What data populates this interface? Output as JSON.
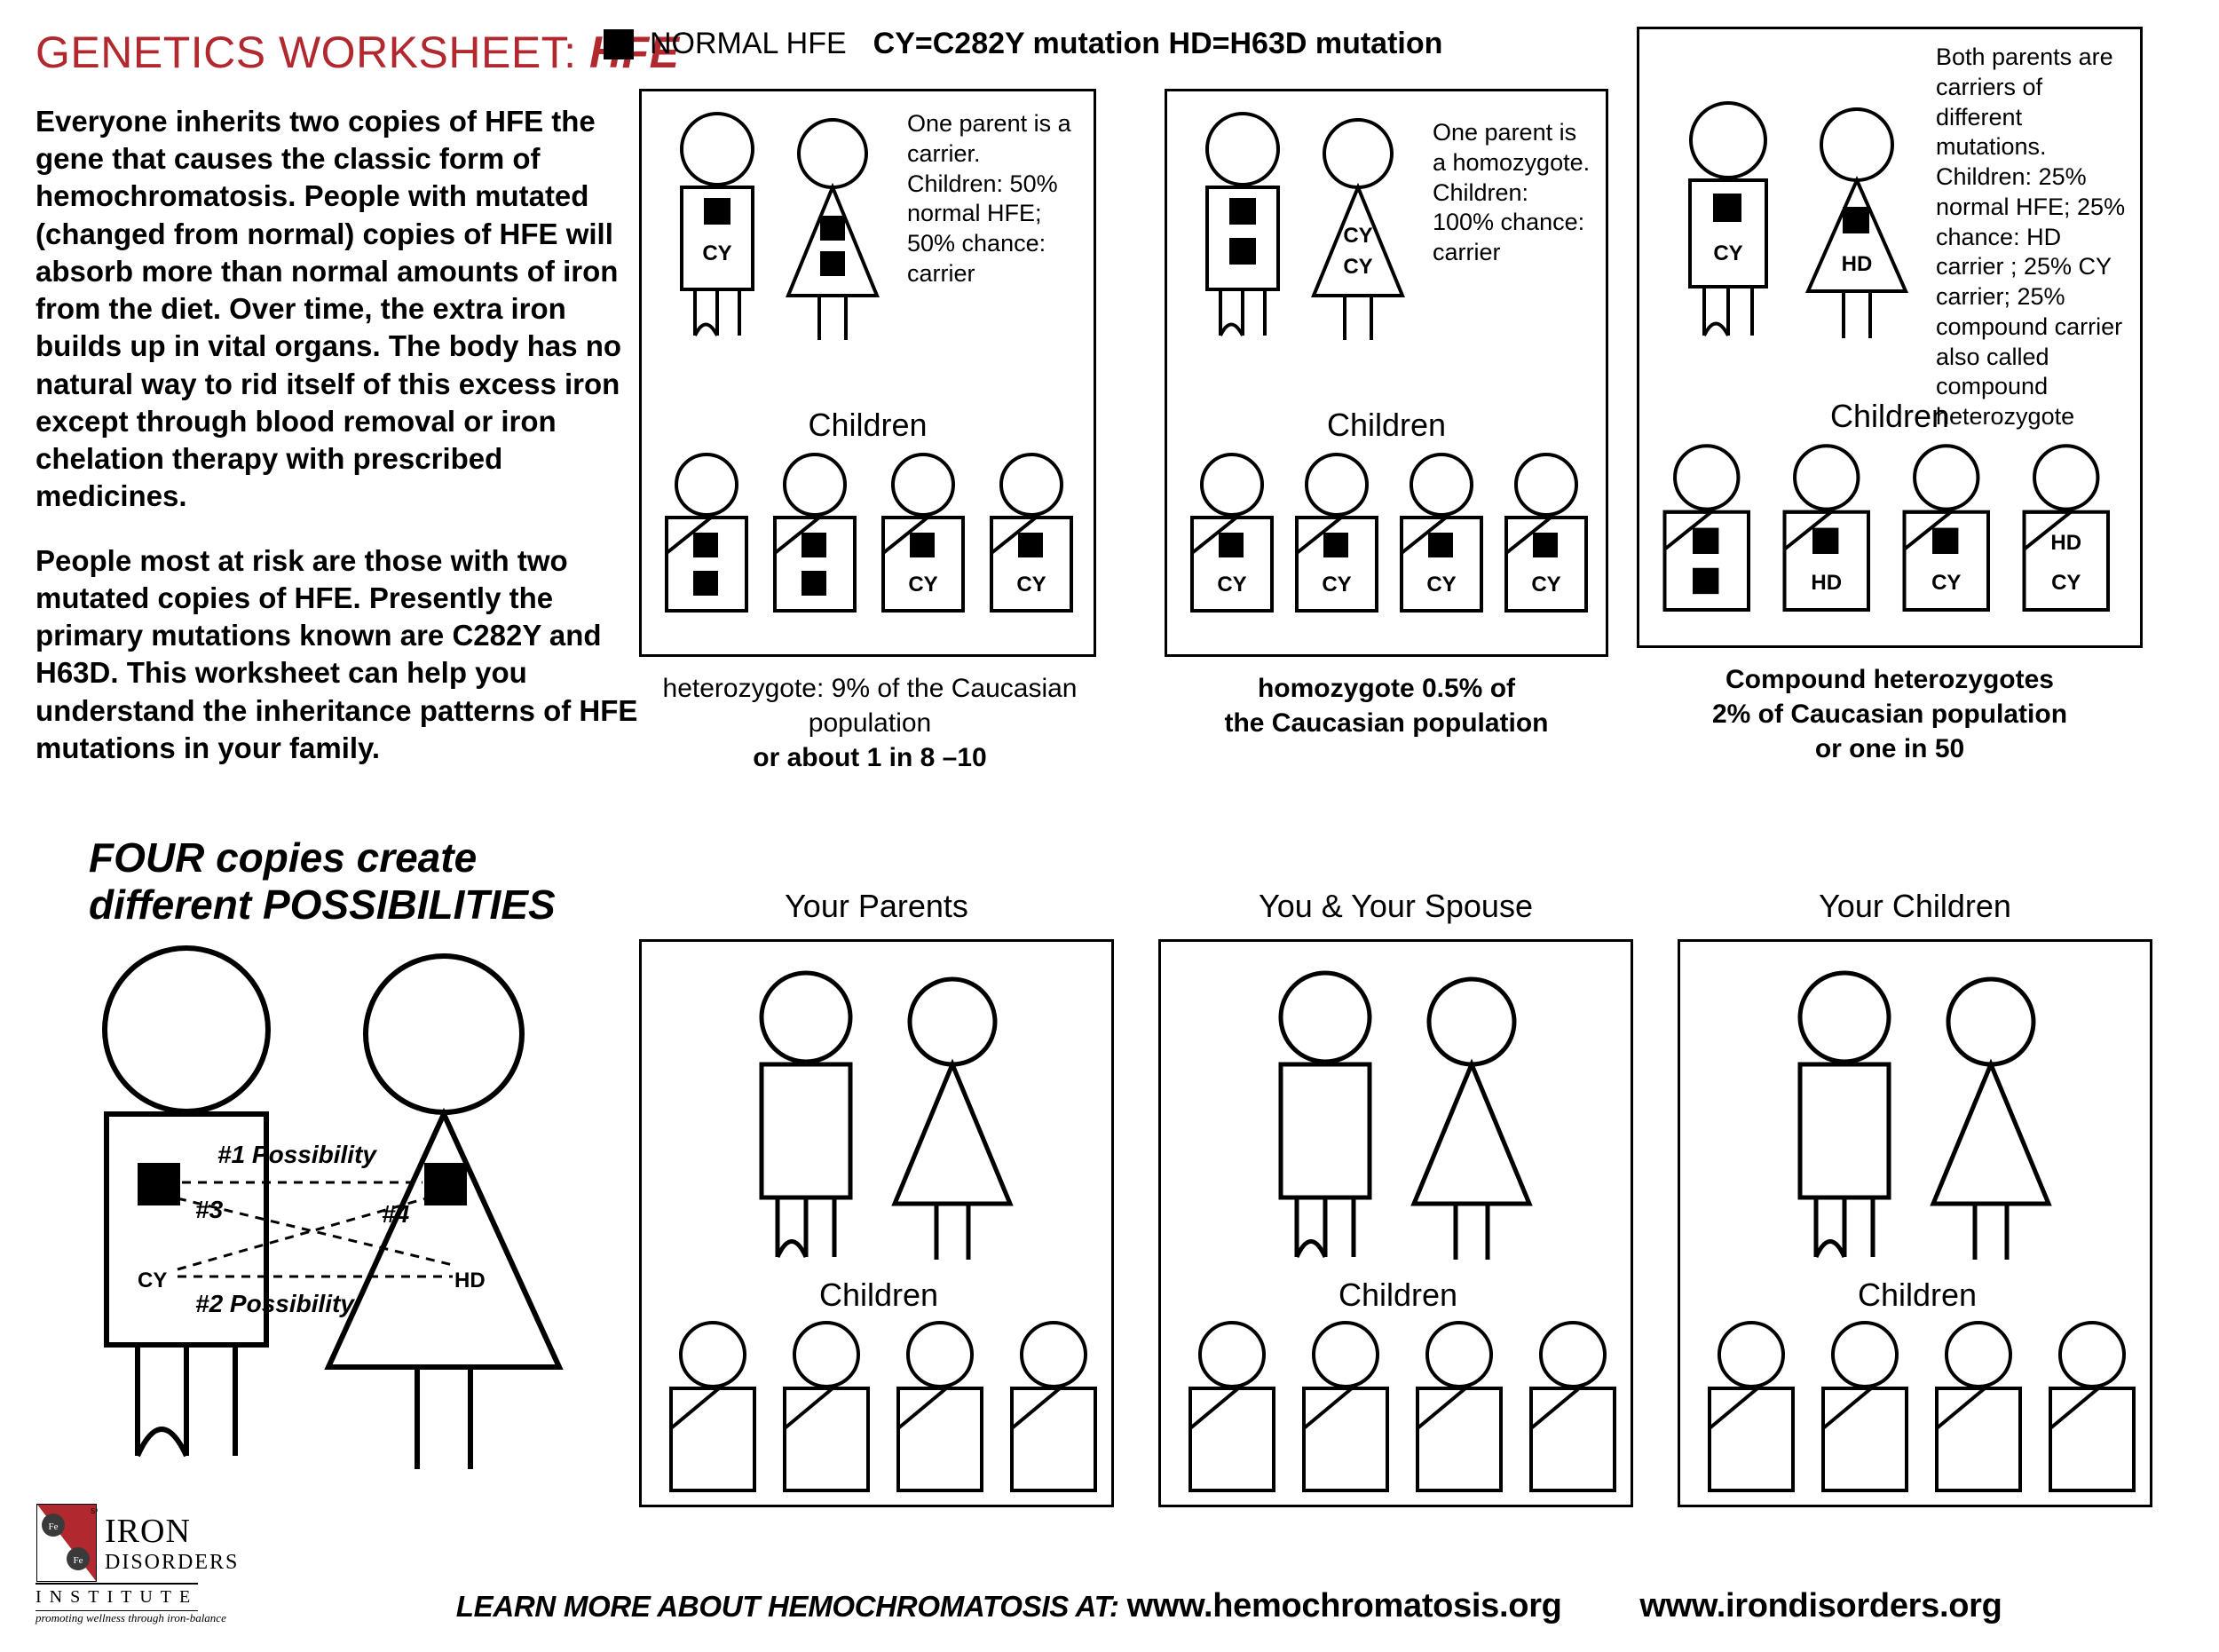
{
  "title_prefix": "GENETICS WORKSHEET: ",
  "title_em": "HFE",
  "legend_normal": "NORMAL HFE",
  "legend_mutations": "CY=C282Y mutation HD=H63D mutation",
  "intro_p1": "Everyone inherits two copies of HFE the gene that causes the classic form of hemochromatosis. People with mutated (changed from normal) copies of HFE will absorb more than normal amounts of iron from the diet.  Over time, the extra iron builds up in vital organs. The body has no natural way to rid itself of this excess iron except through blood removal or iron chelation therapy with prescribed medicines.",
  "intro_p2": "People most at risk are those with two mutated copies of HFE. Presently the primary mutations known are C282Y and H63D. This worksheet can help you understand the inheritance patterns of HFE mutations in your family.",
  "panel1_desc": "One parent is a carrier. Children: 50% normal HFE; 50% chance: carrier",
  "panel2_desc": "One parent is a homozygote. Children: 100% chance: carrier",
  "panel3_desc": "Both parents are carriers of different mutations. Children: 25% normal HFE; 25% chance: HD carrier ; 25% CY carrier; 25% compound carrier also called compound heterozygote",
  "children_label": "Children",
  "panel1_cap1": "heterozygote: 9% of the Caucasian population",
  "panel1_cap2": "or about 1 in 8 –10",
  "panel2_cap1": "homozygote 0.5% of",
  "panel2_cap2": "the Caucasian population",
  "panel3_cap1": "Compound heterozygotes",
  "panel3_cap2": "2% of Caucasian population",
  "panel3_cap3": "or one in 50",
  "bottom_title_l1": "FOUR copies create",
  "bottom_title_l2": "different POSSIBILITIES",
  "col1_title": "Your Parents",
  "col2_title": "You & Your Spouse",
  "col3_title": "Your Children",
  "poss1": "#1 Possibility",
  "poss2": "#2 Possibility",
  "poss3": "#3",
  "poss4": "#4",
  "gene_cy": "CY",
  "gene_hd": "HD",
  "footer_learn": "LEARN MORE ABOUT HEMOCHROMATOSIS AT: ",
  "footer_url1": "www.hemochromatosis.org",
  "footer_url2": "www.irondisorders.org",
  "logo_l1": "IRON",
  "logo_l2": "DISORDERS",
  "logo_l3": "INSTITUTE",
  "logo_tag": "promoting wellness through iron-balance",
  "colors": {
    "title": "#b1282e",
    "body": "#000000",
    "bg": "#ffffff",
    "logo_red": "#b1282e",
    "logo_dark": "#3a3a3a"
  },
  "panel1_father": {
    "gene1": "square",
    "gene1_label": "",
    "gene2": "label",
    "gene2_label": "CY"
  },
  "panel1_mother": {
    "gene1": "square",
    "gene2": "square"
  },
  "panel1_children": [
    {
      "g1": "square",
      "g2": "square"
    },
    {
      "g1": "square",
      "g2": "square"
    },
    {
      "g1": "square",
      "g2_label": "CY"
    },
    {
      "g1": "square",
      "g2_label": "CY"
    }
  ],
  "panel2_father": {
    "gene1": "square",
    "gene2": "square"
  },
  "panel2_mother": {
    "gene1_label": "CY",
    "gene2_label": "CY"
  },
  "panel2_children": [
    {
      "g1": "square",
      "g2_label": "CY"
    },
    {
      "g1": "square",
      "g2_label": "CY"
    },
    {
      "g1": "square",
      "g2_label": "CY"
    },
    {
      "g1": "square",
      "g2_label": "CY"
    }
  ],
  "panel3_father": {
    "gene1": "square",
    "gene2_label": "CY"
  },
  "panel3_mother": {
    "gene1": "square",
    "gene2_label": "HD"
  },
  "panel3_children": [
    {
      "g1": "square",
      "g2": "square"
    },
    {
      "g1": "square",
      "g2_label": "HD"
    },
    {
      "g1": "square",
      "g2_label": "CY"
    },
    {
      "g1_label": "HD",
      "g2_label": "CY"
    }
  ]
}
